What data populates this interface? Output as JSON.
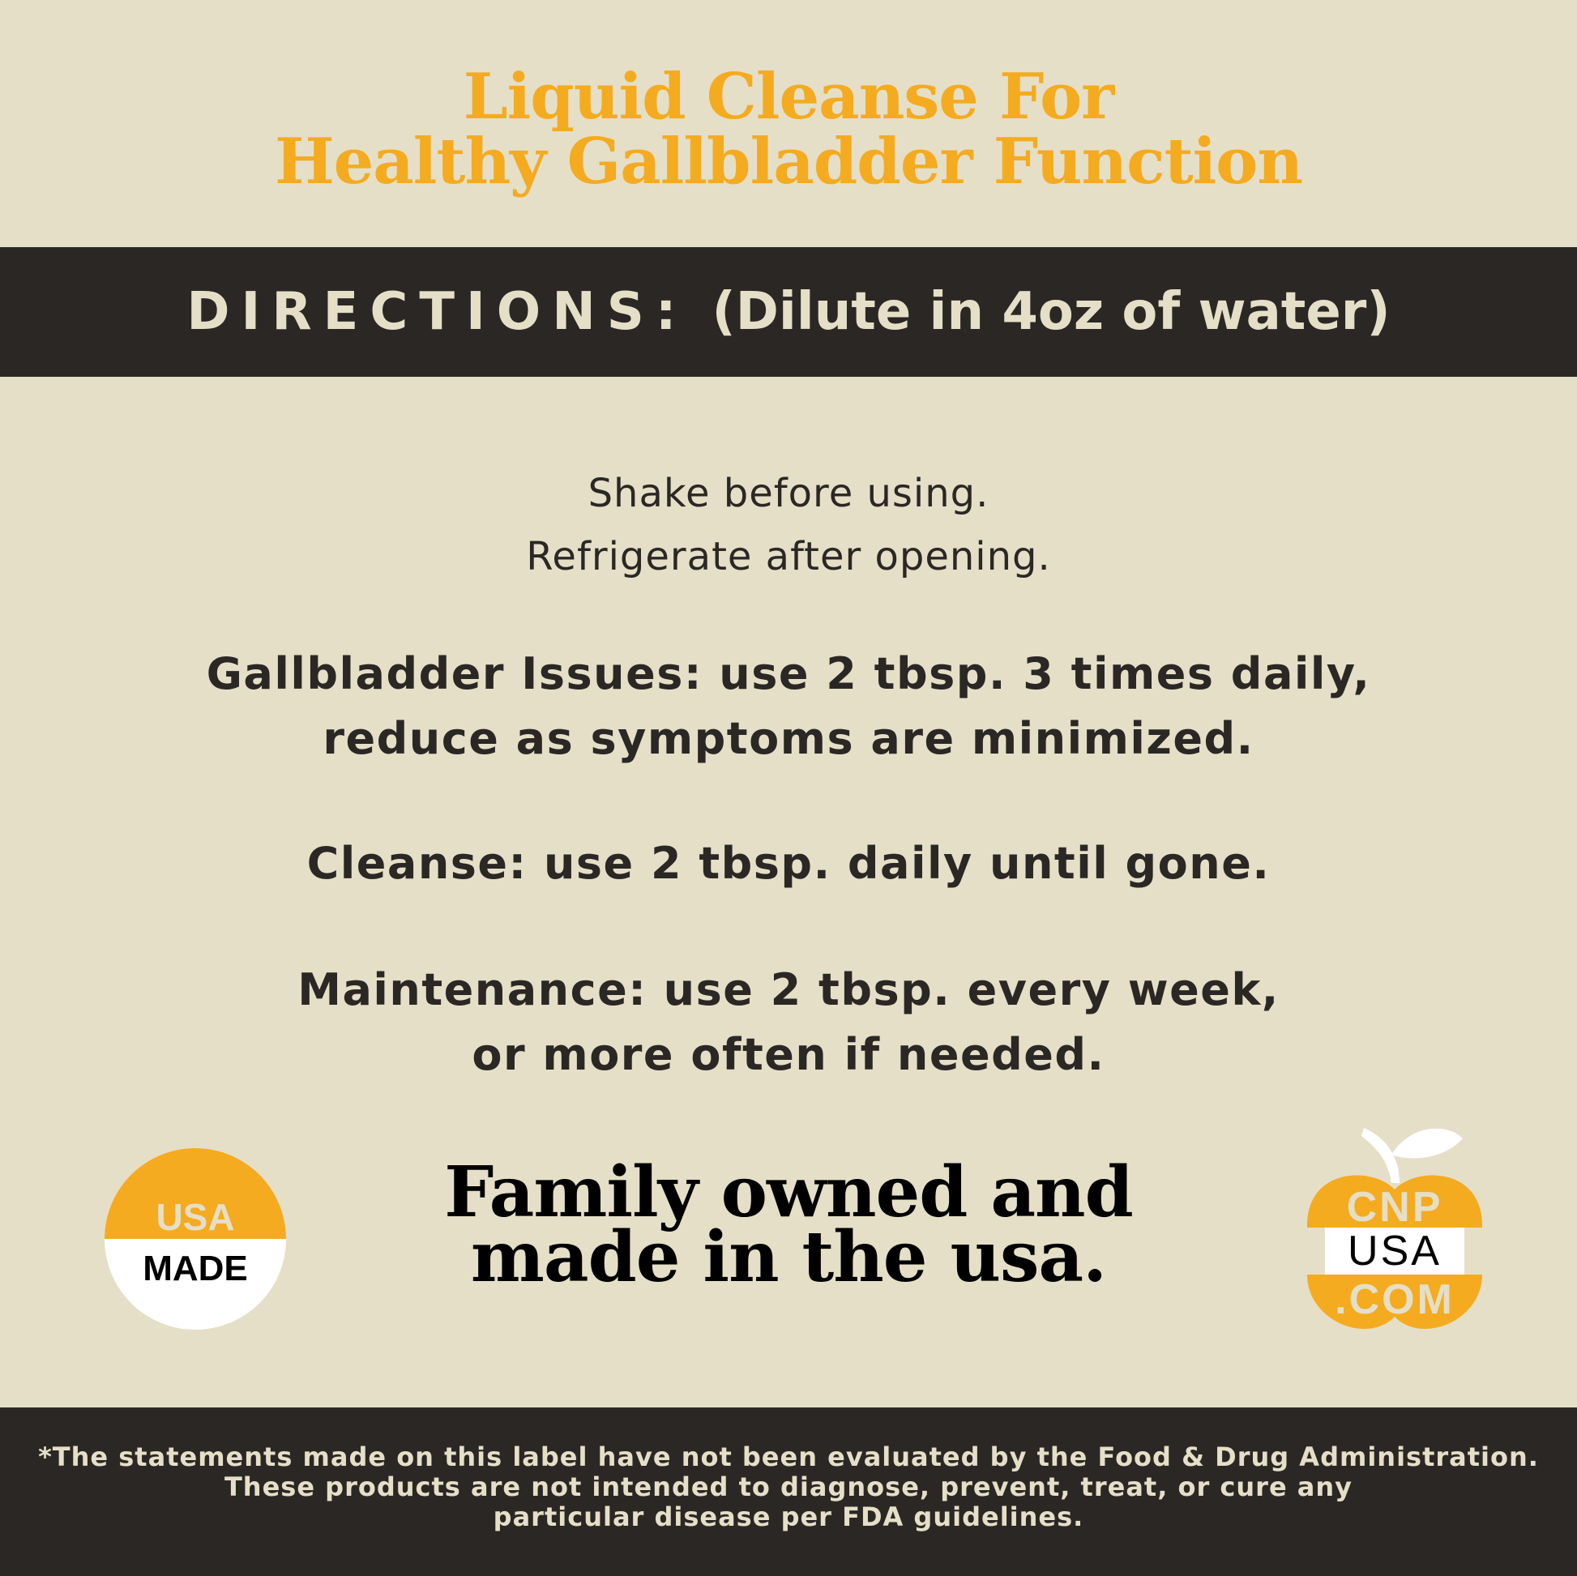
{
  "title": {
    "line1": "Liquid Cleanse For",
    "line2": "Healthy Gallbladder Function"
  },
  "directions": {
    "label": "DIRECTIONS:",
    "note": "(Dilute in 4oz of water)"
  },
  "general": {
    "line1": "Shake before using.",
    "line2": "Refrigerate after opening."
  },
  "gallbladder": {
    "label": "Gallbladder Issues:",
    "line1": " use 2 tbsp. 3 times daily,",
    "line2": "reduce as symptoms are minimized."
  },
  "cleanse": {
    "label": "Cleanse:",
    "text": " use 2 tbsp. daily until gone."
  },
  "maintenance": {
    "label": "Maintenance:",
    "line1": " use 2 tbsp. every week,",
    "line2": "or more often if needed."
  },
  "tagline": {
    "line1": "Family owned and",
    "line2": "made in the usa."
  },
  "usa_badge": {
    "top": "USA",
    "bottom": "MADE"
  },
  "cnp_logo": {
    "line1": "CNP",
    "line2": "USA",
    "line3": ".COM"
  },
  "disclaimer": {
    "line1": "*The statements made on this label have not been evaluated by the Food & Drug Administration.",
    "line2": "These products are not intended to diagnose, prevent, treat, or cure any",
    "line3": "particular disease per FDA guidelines."
  },
  "colors": {
    "background": "#e5dfc8",
    "accent": "#f5ab1f",
    "dark": "#2b2724"
  }
}
